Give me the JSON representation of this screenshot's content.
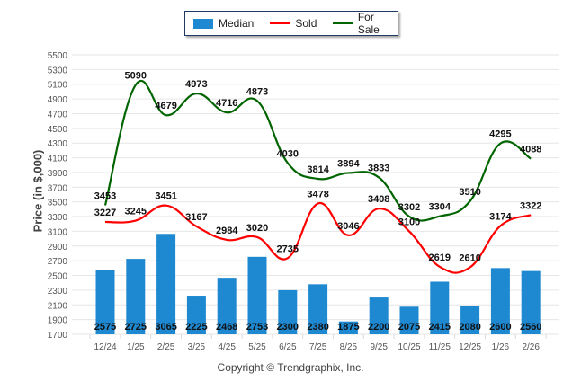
{
  "legend": {
    "items": [
      {
        "label": "Median",
        "color": "#1e88d0",
        "kind": "bar"
      },
      {
        "label": "Sold",
        "color": "#ff0000",
        "kind": "line"
      },
      {
        "label": "For Sale",
        "color": "#006400",
        "kind": "line"
      }
    ]
  },
  "copyright": "Copyright © Trendgraphix, Inc.",
  "chart_data": {
    "type": "bar",
    "title": "",
    "xlabel": "",
    "ylabel": "Price (in $,000)",
    "ylim": [
      1700,
      5500
    ],
    "ytick_step": 200,
    "grid": true,
    "legend_position": "top-center",
    "categories": [
      "12/24",
      "1/25",
      "2/25",
      "3/25",
      "4/25",
      "5/25",
      "6/25",
      "7/25",
      "8/25",
      "9/25",
      "10/25",
      "11/25",
      "12/25",
      "1/26",
      "2/26"
    ],
    "series": [
      {
        "name": "Median",
        "type": "bar",
        "color": "#1e88d0",
        "values": [
          2575,
          2725,
          3065,
          2225,
          2468,
          2753,
          2300,
          2380,
          1875,
          2200,
          2075,
          2415,
          2080,
          2600,
          2560
        ]
      },
      {
        "name": "Sold",
        "type": "line",
        "color": "#ff0000",
        "values": [
          3227,
          3245,
          3451,
          3167,
          2984,
          3020,
          2735,
          3478,
          3046,
          3408,
          3100,
          2619,
          2610,
          3174,
          3322
        ]
      },
      {
        "name": "For Sale",
        "type": "line",
        "color": "#006400",
        "values": [
          3453,
          5090,
          4679,
          4973,
          4716,
          4873,
          4030,
          3814,
          3894,
          3833,
          3302,
          3304,
          3510,
          4295,
          4088
        ]
      }
    ]
  }
}
